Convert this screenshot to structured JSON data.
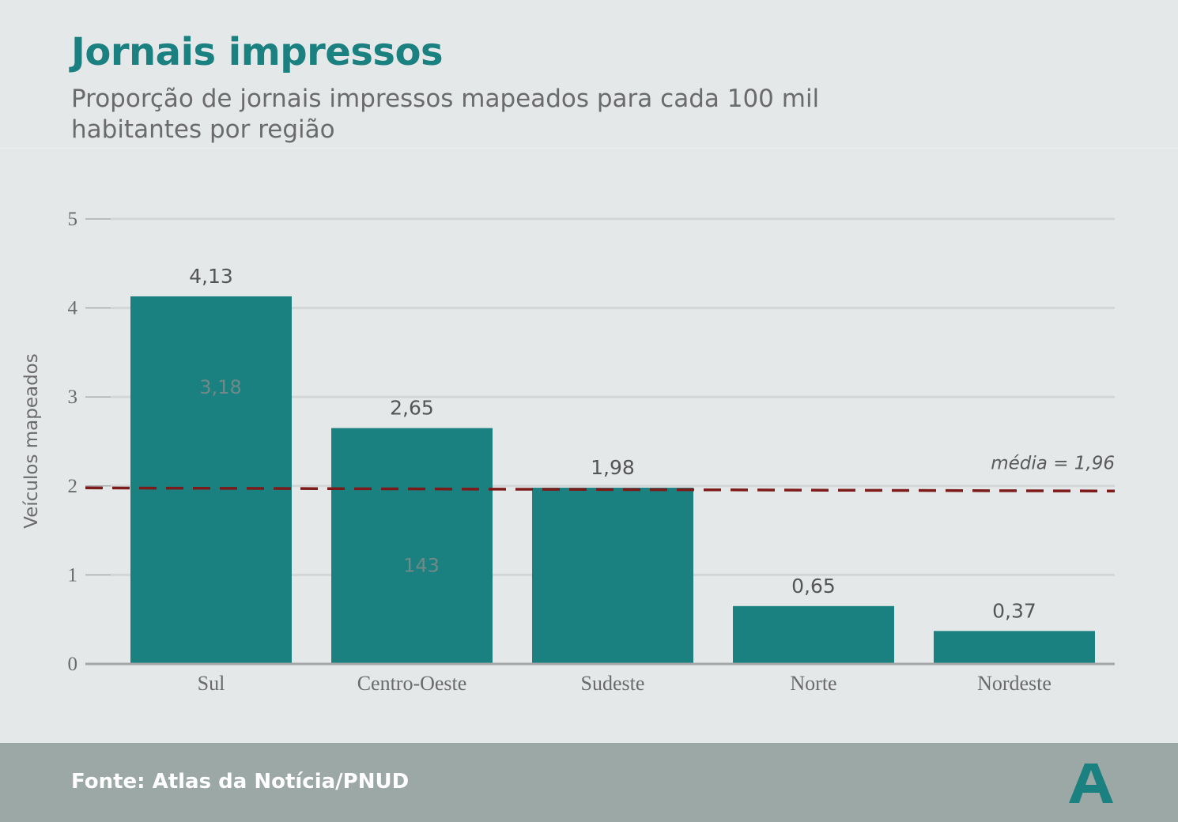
{
  "header": {
    "title": "Jornais impressos",
    "subtitle": "Proporção de jornais impressos mapeados para cada 100 mil habitantes por região"
  },
  "footer": {
    "source": "Fonte: Atlas da Notícia/PNUD",
    "logo_icon": "atlas-a-logo-icon"
  },
  "colors": {
    "bar": "#1a8080",
    "average_line": "#7d1a1a",
    "background": "#e5e8e9",
    "footer_bg": "#9ba8a6"
  },
  "chart_data": {
    "type": "bar",
    "title": "Jornais impressos",
    "subtitle": "Proporção de jornais impressos mapeados para cada 100 mil habitantes por região",
    "xlabel": "",
    "ylabel": "Veículos mapeados",
    "categories": [
      "Sul",
      "Centro-Oeste",
      "Sudeste",
      "Norte",
      "Nordeste"
    ],
    "values": [
      4.13,
      2.65,
      1.98,
      0.65,
      0.37
    ],
    "value_labels": [
      "4,13",
      "2,65",
      "1,98",
      "0,65",
      "0,37"
    ],
    "ylim": [
      0,
      5
    ],
    "yticks": [
      0,
      1,
      2,
      3,
      4,
      5
    ],
    "grid": true,
    "reference_line": {
      "value": 1.96,
      "label": "média = 1,96",
      "style": "dashed"
    },
    "annotations": [
      {
        "text": "3,18",
        "category": "Sul",
        "y": 3.0
      },
      {
        "text": "143",
        "category": "Centro-Oeste",
        "y": 1.0
      }
    ]
  }
}
